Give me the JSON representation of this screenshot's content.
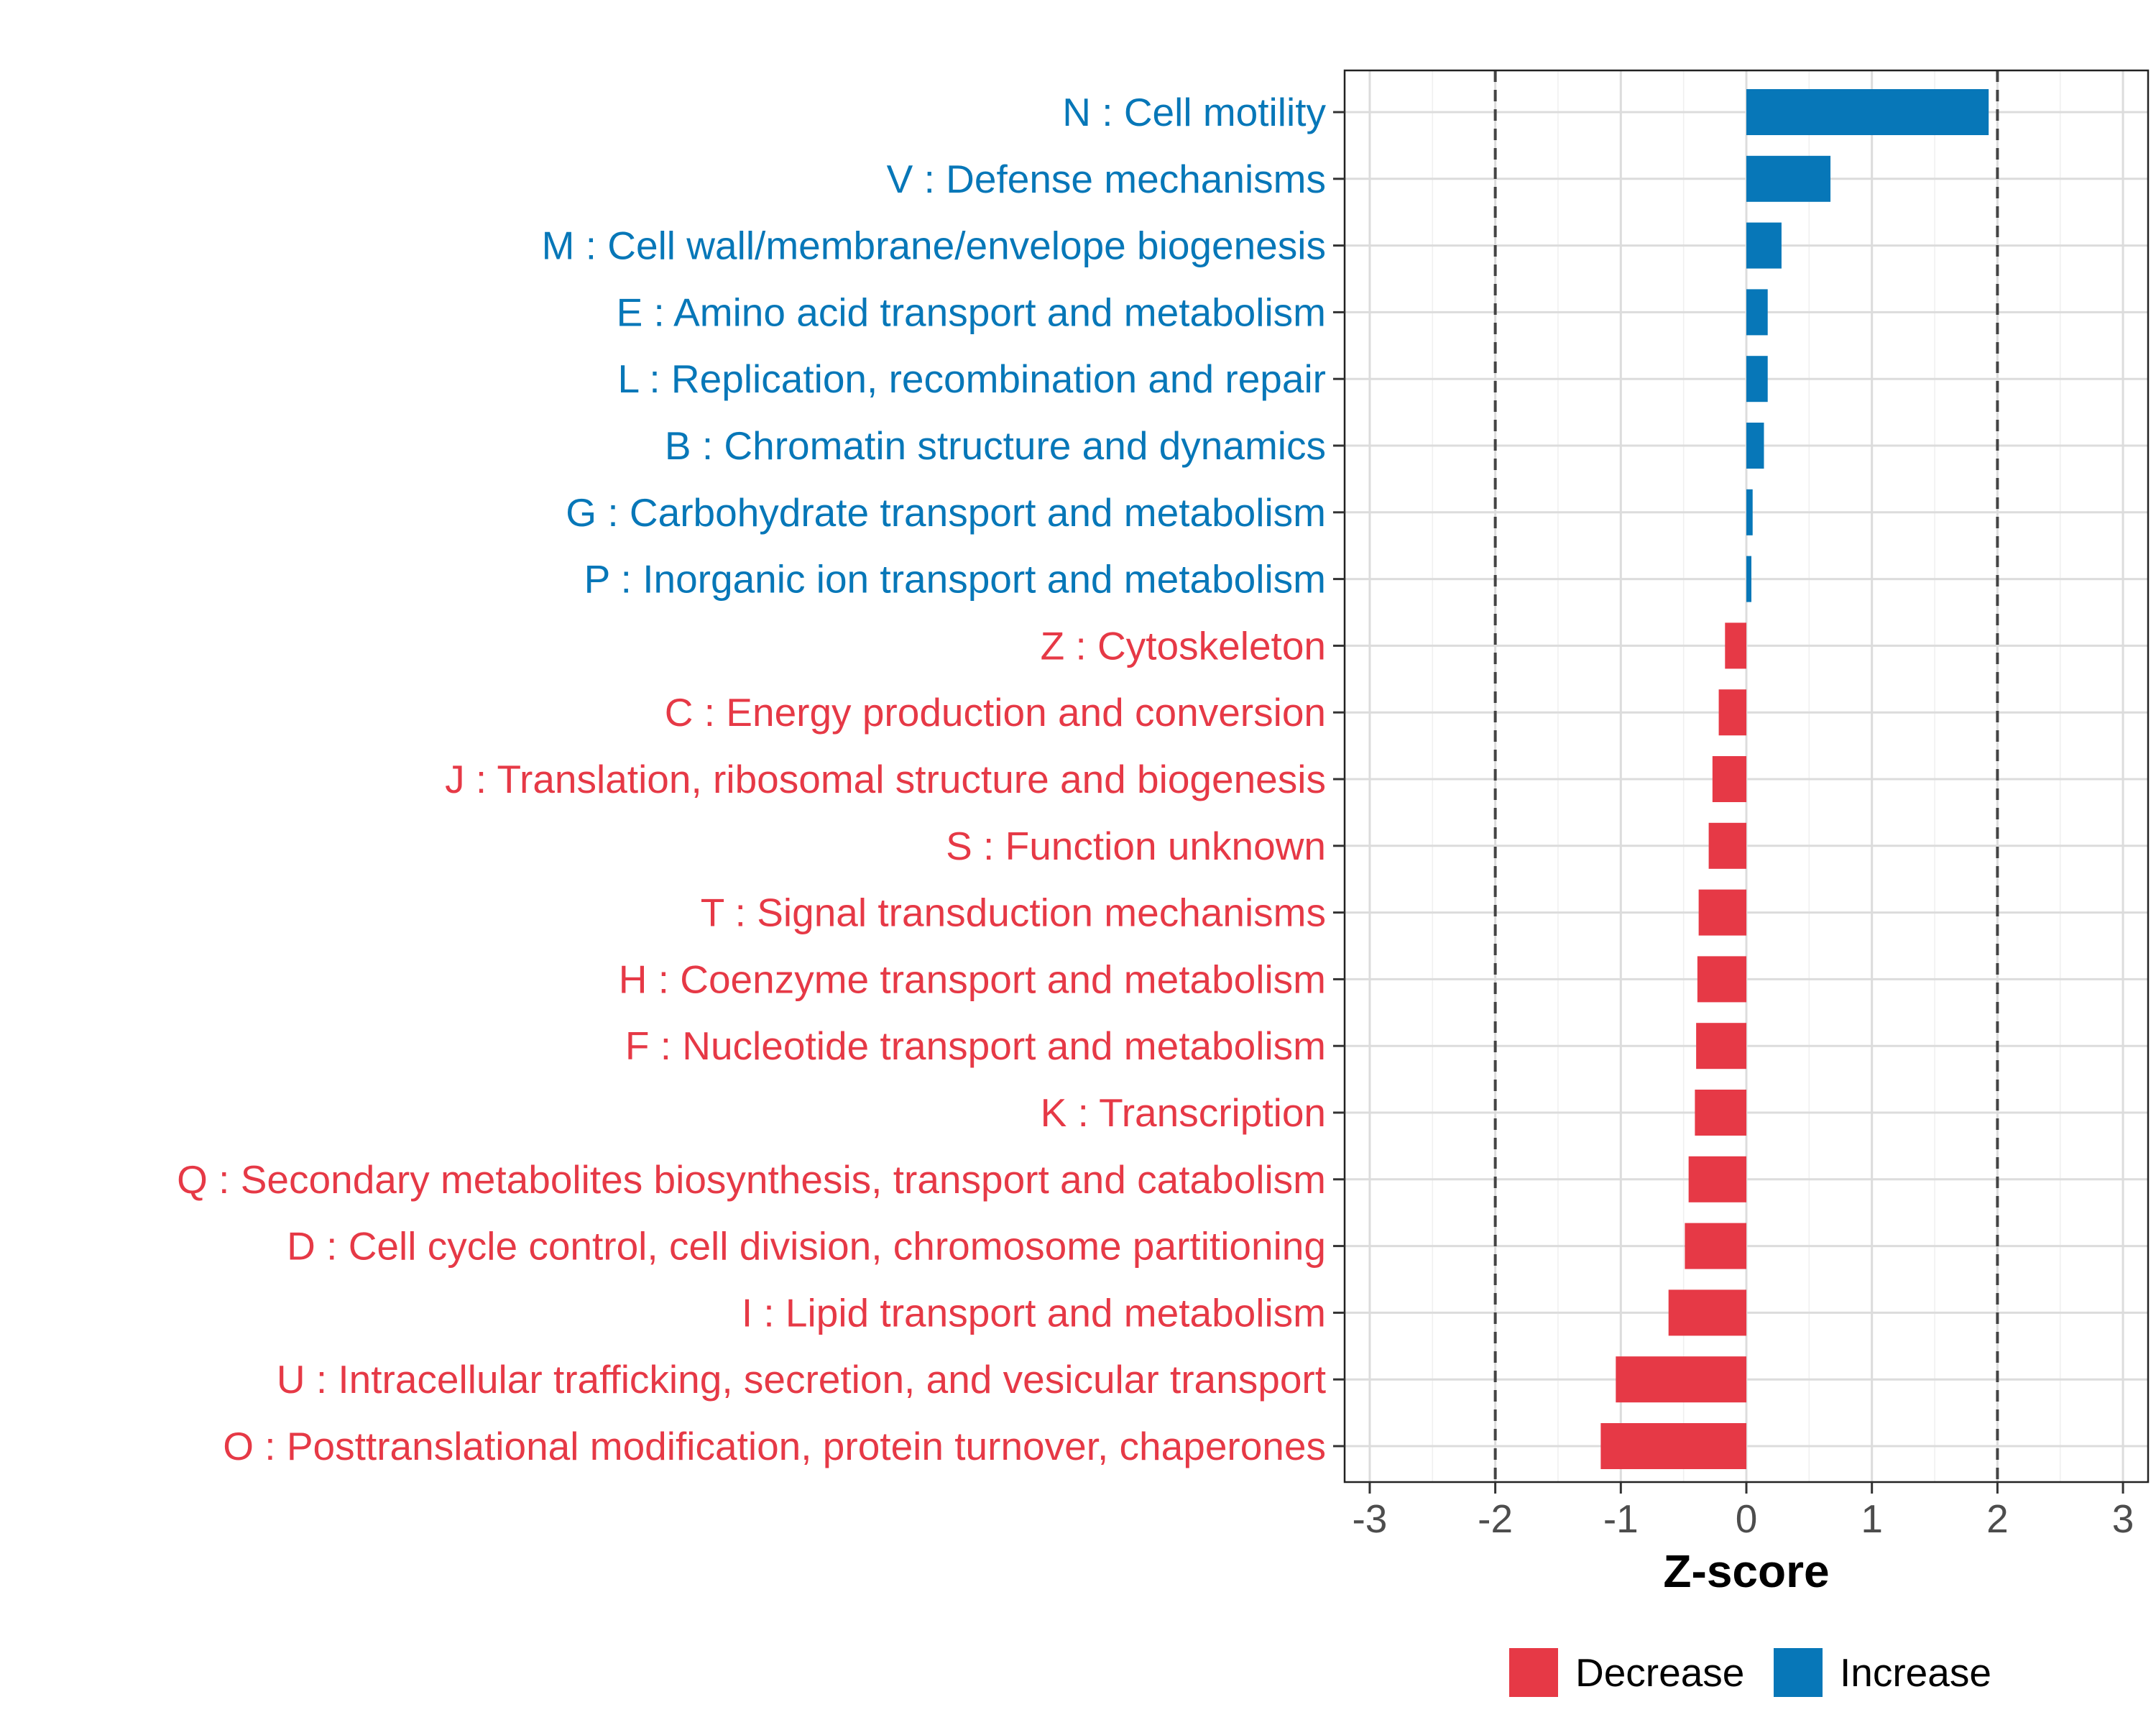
{
  "chart_data": {
    "type": "bar",
    "orientation": "horizontal",
    "title": "",
    "xlabel": "Z-score",
    "ylabel": "",
    "xlim": [
      -3.2,
      3.2
    ],
    "x_ticks": [
      -3,
      -2,
      -1,
      0,
      1,
      2,
      3
    ],
    "x_tick_labels": [
      "-3",
      "-2",
      "-1",
      "0",
      "1",
      "2",
      "3"
    ],
    "reference_lines": [
      -2,
      2
    ],
    "grid": true,
    "legend_position": "bottom",
    "colors": {
      "Decrease": "#e63946",
      "Increase": "#0777b8"
    },
    "legend": [
      {
        "label": "Decrease",
        "color": "#e63946"
      },
      {
        "label": "Increase",
        "color": "#0777b8"
      }
    ],
    "categories": [
      "N : Cell motility",
      "V : Defense mechanisms",
      "M : Cell wall/membrane/envelope biogenesis",
      "E : Amino acid transport and metabolism",
      "L : Replication, recombination and repair",
      "B : Chromatin structure and dynamics",
      "G : Carbohydrate transport and metabolism",
      "P : Inorganic ion transport and metabolism",
      "Z : Cytoskeleton",
      "C : Energy production and conversion",
      "J : Translation, ribosomal structure and biogenesis",
      "S : Function unknown",
      "T : Signal transduction mechanisms",
      "H : Coenzyme transport and metabolism",
      "F : Nucleotide transport and metabolism",
      "K : Transcription",
      "Q : Secondary metabolites biosynthesis, transport and catabolism",
      "D : Cell cycle control, cell division, chromosome partitioning",
      "I : Lipid transport and metabolism",
      "U : Intracellular trafficking, secretion, and vesicular transport",
      "O : Posttranslational modification, protein turnover, chaperones"
    ],
    "values": [
      1.93,
      0.67,
      0.28,
      0.17,
      0.17,
      0.14,
      0.05,
      0.04,
      -0.17,
      -0.22,
      -0.27,
      -0.3,
      -0.38,
      -0.39,
      -0.4,
      -0.41,
      -0.46,
      -0.49,
      -0.62,
      -1.04,
      -1.16
    ],
    "direction": [
      "Increase",
      "Increase",
      "Increase",
      "Increase",
      "Increase",
      "Increase",
      "Increase",
      "Increase",
      "Decrease",
      "Decrease",
      "Decrease",
      "Decrease",
      "Decrease",
      "Decrease",
      "Decrease",
      "Decrease",
      "Decrease",
      "Decrease",
      "Decrease",
      "Decrease",
      "Decrease"
    ]
  }
}
